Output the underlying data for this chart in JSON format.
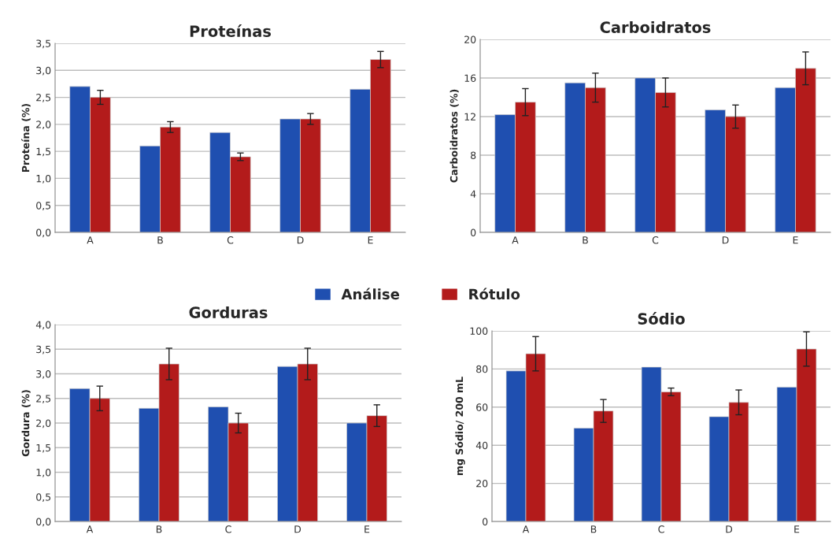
{
  "chart_data": [
    {
      "type": "bar",
      "title": "Proteínas",
      "ylabel": "Proteína (%)",
      "categories": [
        "A",
        "B",
        "C",
        "D",
        "E"
      ],
      "ylim": [
        0,
        3.5
      ],
      "yticks": [
        {
          "value": 0,
          "label": "0,0"
        },
        {
          "value": 0.5,
          "label": "0,5"
        },
        {
          "value": 1,
          "label": "1,0"
        },
        {
          "value": 1.5,
          "label": "1,5"
        },
        {
          "value": 2,
          "label": "2,0"
        },
        {
          "value": 2.5,
          "label": "2,5"
        },
        {
          "value": 3,
          "label": "3,0"
        },
        {
          "value": 3.5,
          "label": "3,5"
        }
      ],
      "grid": "y",
      "legend": "bottom",
      "series": [
        {
          "name": "Análise",
          "color": "#1f4fb0",
          "values": [
            2.7,
            1.6,
            1.85,
            2.1,
            2.65
          ]
        },
        {
          "name": "Rótulo",
          "color": "#b31b1b",
          "values": [
            2.5,
            1.95,
            1.4,
            2.1,
            3.2
          ],
          "errors": [
            0.13,
            0.1,
            0.07,
            0.1,
            0.15
          ]
        }
      ]
    },
    {
      "type": "bar",
      "title": "Carboidratos",
      "ylabel": "Carboidratos (%)",
      "categories": [
        "A",
        "B",
        "C",
        "D",
        "E"
      ],
      "ylim": [
        0,
        20
      ],
      "yticks": [
        0,
        4,
        8,
        12,
        16,
        20
      ],
      "grid": "y",
      "series": [
        {
          "color": "#1f4fb0",
          "values": [
            12.2,
            15.5,
            16.0,
            12.7,
            15.0
          ]
        },
        {
          "color": "#b31b1b",
          "values": [
            13.5,
            15.0,
            14.5,
            12.0,
            17.0
          ],
          "errors": [
            1.4,
            1.5,
            1.5,
            1.2,
            1.7
          ]
        }
      ]
    },
    {
      "type": "bar",
      "title": "Gorduras",
      "ylabel": "Gordura (%)",
      "categories": [
        "A",
        "B",
        "C",
        "D",
        "E"
      ],
      "ylim": [
        0,
        4
      ],
      "yticks": [
        {
          "value": 0,
          "label": "0,0"
        },
        {
          "value": 0.5,
          "label": "0,5"
        },
        {
          "value": 1,
          "label": "1,0"
        },
        {
          "value": 1.5,
          "label": "1,5"
        },
        {
          "value": 2,
          "label": "2,0"
        },
        {
          "value": 2.5,
          "label": "2,5"
        },
        {
          "value": 3,
          "label": "3,0"
        },
        {
          "value": 3.5,
          "label": "3,5"
        },
        {
          "value": 4,
          "label": "4,0"
        }
      ],
      "grid": "y",
      "series": [
        {
          "color": "#1f4fb0",
          "values": [
            2.7,
            2.3,
            2.33,
            3.15,
            2.0
          ]
        },
        {
          "color": "#b31b1b",
          "values": [
            2.5,
            3.2,
            2.0,
            3.2,
            2.15
          ],
          "errors": [
            0.25,
            0.32,
            0.2,
            0.32,
            0.22
          ]
        }
      ]
    },
    {
      "type": "bar",
      "title": "Sódio",
      "ylabel": "mg Sódio/ 200 mL",
      "categories": [
        "A",
        "B",
        "C",
        "D",
        "E"
      ],
      "ylim": [
        0,
        100
      ],
      "yticks": [
        0,
        20,
        40,
        60,
        80,
        100
      ],
      "grid": "y",
      "series": [
        {
          "color": "#1f4fb0",
          "values": [
            79,
            49,
            81,
            55,
            70.5
          ]
        },
        {
          "color": "#b31b1b",
          "values": [
            88,
            58,
            68,
            62.5,
            90.5
          ],
          "errors": [
            9,
            6,
            2,
            6.5,
            9
          ]
        }
      ]
    }
  ]
}
